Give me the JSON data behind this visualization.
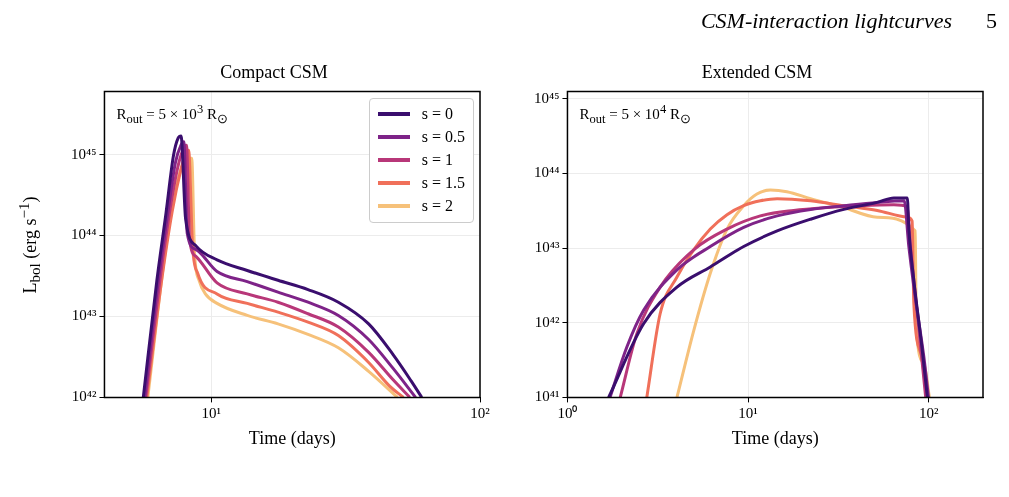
{
  "chart_data": [
    {
      "type": "line",
      "title": "Compact CSM",
      "xlabel": "Time (days)",
      "ylabel": "L$_{bol}$ (erg s$^{−1}$)",
      "log": "xy",
      "grid": true,
      "marker": "none",
      "legend": "top right",
      "annotations": [
        "R$_{out}$ = 5 × 10$^{3}$ R$_{⊙}$",
        "CSM-interaction lightcurves",
        "5"
      ],
      "xlim": [
        4,
        100
      ],
      "xticks": [
        {
          "value": 10,
          "label": "10¹"
        },
        {
          "value": 100,
          "label": "10²"
        }
      ],
      "ylim": [
        1e+42,
        6e+45
      ],
      "yticks": [
        {
          "value": 1e+42,
          "label": "10⁴²"
        },
        {
          "value": 1e+43,
          "label": "10⁴³"
        },
        {
          "value": 1e+44,
          "label": "10⁴⁴"
        },
        {
          "value": 1e+45,
          "label": "10⁴⁵"
        }
      ],
      "series": [
        {
          "name": "s = 0",
          "color": "#3a0e6e",
          "x": [
            5.58,
            6.27,
            6.78,
            7.23,
            7.52,
            7.71,
            8.02,
            8.78,
            10.5,
            13.6,
            17.7,
            22.9,
            29.7,
            38.5,
            47.4,
            55.4,
            60.7
          ],
          "values": [
            1e+42,
            2.8e+43,
            1.9e+44,
            9.8e+44,
            1.6e+45,
            1.7e+45,
            1.6e+44,
            7.4e+43,
            5e+43,
            3.7e+43,
            2.8e+43,
            2.15e+43,
            1.5e+43,
            8.1e+42,
            3.4e+42,
            1.6e+42,
            1e+42
          ]
        },
        {
          "name": "s = 0.5",
          "color": "#7e2388",
          "x": [
            5.65,
            6.35,
            6.9,
            7.35,
            7.7,
            7.9,
            8.13,
            8.78,
            10.5,
            13.6,
            17.7,
            22.9,
            29.7,
            38.5,
            47.4,
            57.6
          ],
          "values": [
            1e+42,
            2.8e+43,
            2e+44,
            8e+44,
            1.3e+45,
            1.44e+45,
            1.07e+44,
            6.7e+43,
            3.6e+43,
            2.7e+43,
            2e+43,
            1.5e+43,
            1.03e+43,
            5.2e+42,
            2.3e+42,
            1e+42
          ]
        },
        {
          "name": "s = 1",
          "color": "#b83779",
          "x": [
            5.7,
            6.45,
            7.0,
            7.5,
            7.85,
            8.08,
            8.3,
            8.78,
            10.5,
            13.6,
            17.7,
            22.9,
            29.7,
            38.5,
            47.4,
            54.8
          ],
          "values": [
            1e+42,
            3e+43,
            2e+44,
            7e+44,
            1.15e+45,
            1.3e+45,
            8.9e+43,
            5.5e+43,
            2.6e+43,
            1.9e+43,
            1.5e+43,
            1.08e+43,
            7.4e+42,
            3.6e+42,
            1.66e+42,
            1e+42
          ]
        },
        {
          "name": "s = 1.5",
          "color": "#f0705a",
          "x": [
            5.75,
            6.55,
            7.15,
            7.7,
            8.0,
            8.23,
            8.51,
            8.9,
            10.5,
            13.6,
            17.7,
            22.9,
            29.7,
            38.5,
            46.2,
            51.9
          ],
          "values": [
            1e+42,
            3e+43,
            2e+44,
            6.5e+44,
            1e+45,
            1.13e+45,
            7.4e+43,
            3.4e+43,
            1.9e+43,
            1.45e+43,
            1.13e+43,
            8.5e+42,
            5.8e+42,
            2.7e+42,
            1.37e+42,
            1e+42
          ]
        },
        {
          "name": "s = 2",
          "color": "#f6c17a",
          "x": [
            5.8,
            6.78,
            7.52,
            8.13,
            8.45,
            8.66,
            9.0,
            9.5,
            10.5,
            13.6,
            17.7,
            22.9,
            29.7,
            38.5,
            49.3
          ],
          "values": [
            1e+42,
            7.4e+43,
            5e+44,
            8.9e+44,
            9e+44,
            6e+43,
            2.8e+43,
            1.9e+43,
            1.45e+43,
            1.03e+43,
            8.1e+42,
            6e+42,
            4.1e+42,
            2.1e+42,
            1e+42
          ]
        }
      ]
    },
    {
      "type": "line",
      "title": "Extended CSM",
      "xlabel": "Time (days)",
      "log": "xy",
      "grid": true,
      "marker": "none",
      "annotations": [
        "R$_{out}$ = 5 × 10$^{4}$ R$_{⊙}$"
      ],
      "xlim": [
        1,
        200
      ],
      "xticks": [
        {
          "value": 1,
          "label": "10⁰"
        },
        {
          "value": 10,
          "label": "10¹"
        },
        {
          "value": 100,
          "label": "10²"
        }
      ],
      "ylim": [
        1e+41,
        1.25e+45
      ],
      "yticks": [
        {
          "value": 1e+41,
          "label": "10⁴¹"
        },
        {
          "value": 1e+42,
          "label": "10⁴²"
        },
        {
          "value": 1e+43,
          "label": "10⁴³"
        },
        {
          "value": 1e+44,
          "label": "10⁴⁴"
        },
        {
          "value": 1e+45,
          "label": "10⁴⁵"
        }
      ],
      "series": [
        {
          "color": "#3a0e6e",
          "x": [
            1.69,
            2.64,
            4.04,
            6.18,
            9.46,
            14.5,
            22.2,
            33.9,
            51.9,
            64.2,
            76.2,
            77.7,
            82.8,
            91.8,
            98.4
          ],
          "values": [
            1e+41,
            9.7e+41,
            3e+42,
            5.6e+42,
            1.05e+43,
            1.7e+43,
            2.44e+43,
            3.3e+43,
            4.1e+43,
            4.7e+43,
            4.7e+43,
            1.8e+43,
            3.7e+42,
            4.7e+41,
            1e+41
          ]
        },
        {
          "color": "#7e2388",
          "x": [
            1.72,
            2.13,
            2.64,
            4.04,
            6.18,
            9.46,
            14.5,
            22.2,
            33.9,
            51.9,
            73.2,
            77.7,
            84.3,
            94.2,
            99.8
          ],
          "values": [
            1e+41,
            4.7e+41,
            1.47e+42,
            5.1e+42,
            1.05e+43,
            1.9e+43,
            2.7e+43,
            3.3e+43,
            3.7e+43,
            4.1e+43,
            4.3e+43,
            1.05e+43,
            2.2e+42,
            3.4e+41,
            1e+41
          ]
        },
        {
          "color": "#b83779",
          "x": [
            1.96,
            2.42,
            3.26,
            5.0,
            7.65,
            11.7,
            17.9,
            27.4,
            42,
            64.2,
            76.2,
            79.3,
            86.6,
            96.3
          ],
          "values": [
            1e+41,
            7.1e+41,
            3e+42,
            9.5e+42,
            1.8e+43,
            2.7e+43,
            3.2e+43,
            3.5e+43,
            3.7e+43,
            3.8e+43,
            3.6e+43,
            1.05e+43,
            1.3e+42,
            1e+41
          ]
        },
        {
          "color": "#f0705a",
          "x": [
            2.75,
            3.26,
            4.04,
            5.0,
            6.18,
            7.65,
            9.46,
            11.7,
            14.5,
            22.2,
            33.9,
            51.9,
            76.2,
            81,
            82.8,
            91.8,
            97.4
          ],
          "values": [
            1e+41,
            1.32e+42,
            4.1e+42,
            9.5e+42,
            1.8e+43,
            2.8e+43,
            3.7e+43,
            4.3e+43,
            4.6e+43,
            4.3e+43,
            3.7e+43,
            3.2e+43,
            2.6e+43,
            2.3e+43,
            1.8e+42,
            3.4e+41,
            1e+41
          ]
        },
        {
          "color": "#f6c17a",
          "x": [
            4.04,
            5.0,
            6.18,
            7.65,
            9.46,
            11.2,
            13.3,
            16.4,
            22.2,
            33.9,
            51.9,
            84.3,
            85.4,
            94.2,
            101
          ],
          "values": [
            1e+41,
            7.8e+41,
            4.6e+42,
            1.8e+43,
            3.7e+43,
            5.3e+43,
            6e+43,
            5.7e+43,
            4.6e+43,
            3.5e+43,
            2.6e+43,
            1.7e+43,
            8.7e+41,
            2.8e+41,
            1e+41
          ]
        }
      ]
    }
  ]
}
